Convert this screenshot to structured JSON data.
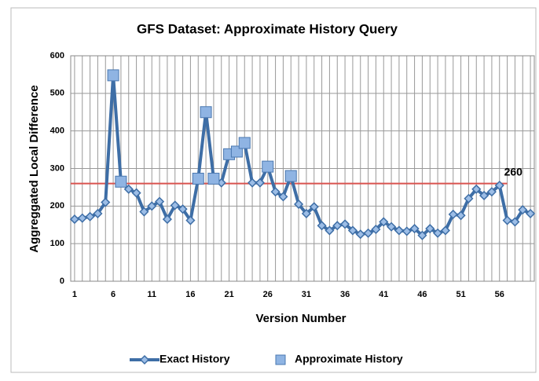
{
  "chart_data": {
    "type": "line",
    "title": "GFS Dataset: Approximate History Query",
    "x_label": "Version Number",
    "y_label": "Aggreggated  Local Difference",
    "categories": [
      1,
      null,
      null,
      null,
      null,
      6,
      null,
      null,
      null,
      null,
      11,
      null,
      null,
      null,
      null,
      16,
      null,
      null,
      null,
      null,
      21,
      null,
      null,
      null,
      null,
      26,
      null,
      null,
      null,
      null,
      31,
      null,
      null,
      null,
      null,
      36,
      null,
      null,
      null,
      null,
      41,
      null,
      null,
      null,
      null,
      46,
      null,
      null,
      null,
      null,
      51,
      null,
      null,
      null,
      null,
      56,
      null,
      null,
      null,
      null
    ],
    "series": [
      {
        "name": "Exact History",
        "color": "#3e6ea6",
        "marker": "diamond",
        "values": [
          165,
          168,
          172,
          180,
          210,
          548,
          265,
          245,
          235,
          185,
          200,
          212,
          165,
          202,
          192,
          162,
          273,
          450,
          273,
          262,
          338,
          345,
          368,
          262,
          262,
          305,
          238,
          225,
          280,
          205,
          180,
          198,
          148,
          135,
          148,
          152,
          135,
          125,
          128,
          138,
          158,
          145,
          135,
          133,
          140,
          122,
          140,
          128,
          135,
          178,
          175,
          220,
          245,
          228,
          238,
          255,
          162,
          158,
          190,
          180
        ]
      },
      {
        "name": "Approximate History",
        "color": "#8fb4e3",
        "marker": "square",
        "values": [
          null,
          null,
          null,
          null,
          null,
          548,
          265,
          null,
          null,
          null,
          null,
          null,
          null,
          null,
          null,
          null,
          273,
          450,
          273,
          null,
          338,
          345,
          368,
          null,
          null,
          305,
          null,
          null,
          280,
          null,
          null,
          null,
          null,
          null,
          null,
          null,
          null,
          null,
          null,
          null,
          null,
          null,
          null,
          null,
          null,
          null,
          null,
          null,
          null,
          null,
          null,
          null,
          null,
          null,
          null,
          null,
          null,
          null,
          null,
          null
        ]
      }
    ],
    "reference_line": {
      "value": 260,
      "color": "#d9534f"
    },
    "ylim": [
      0,
      600
    ],
    "yticks": [
      0,
      100,
      200,
      300,
      400,
      500,
      600
    ],
    "grid": true,
    "legend": "bottom"
  }
}
